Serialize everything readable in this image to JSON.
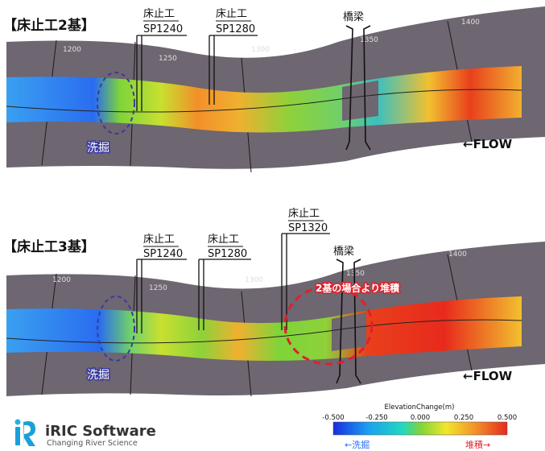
{
  "panels": [
    {
      "title": "【床止工2基】",
      "structures": [
        {
          "name": "床止工",
          "station": "SP1240"
        },
        {
          "name": "床止工",
          "station": "SP1280"
        }
      ],
      "bridge": "橋梁",
      "stations": [
        "1200",
        "1250",
        "1300",
        "1350",
        "1400"
      ],
      "scour_label": "洗掘",
      "flow_label": "←FLOW"
    },
    {
      "title": "【床止工3基】",
      "structures": [
        {
          "name": "床止工",
          "station": "SP1240"
        },
        {
          "name": "床止工",
          "station": "SP1280"
        },
        {
          "name": "床止工",
          "station": "SP1320"
        }
      ],
      "bridge": "橋梁",
      "stations": [
        "1200",
        "1250",
        "1300",
        "1350",
        "1400"
      ],
      "scour_label": "洗掘",
      "flow_label": "←FLOW",
      "callout": "2基の場合より堆積"
    }
  ],
  "legend": {
    "title": "ElevationChange(m)",
    "ticks": [
      "-0.500",
      "-0.250",
      "0.000",
      "0.250",
      "0.500"
    ],
    "scour_label": "←洗掘",
    "deposit_label": "堆積→"
  },
  "logo": {
    "name": "iRIC Software",
    "tagline": "Changing River Science"
  },
  "colors": {
    "terrain": "#6e6670",
    "scour": "#2a6cf0",
    "deposit": "#e82a1c",
    "neutral": "#8ed13a",
    "callout": "#e0202a",
    "annotation": "#3a3aa0"
  }
}
